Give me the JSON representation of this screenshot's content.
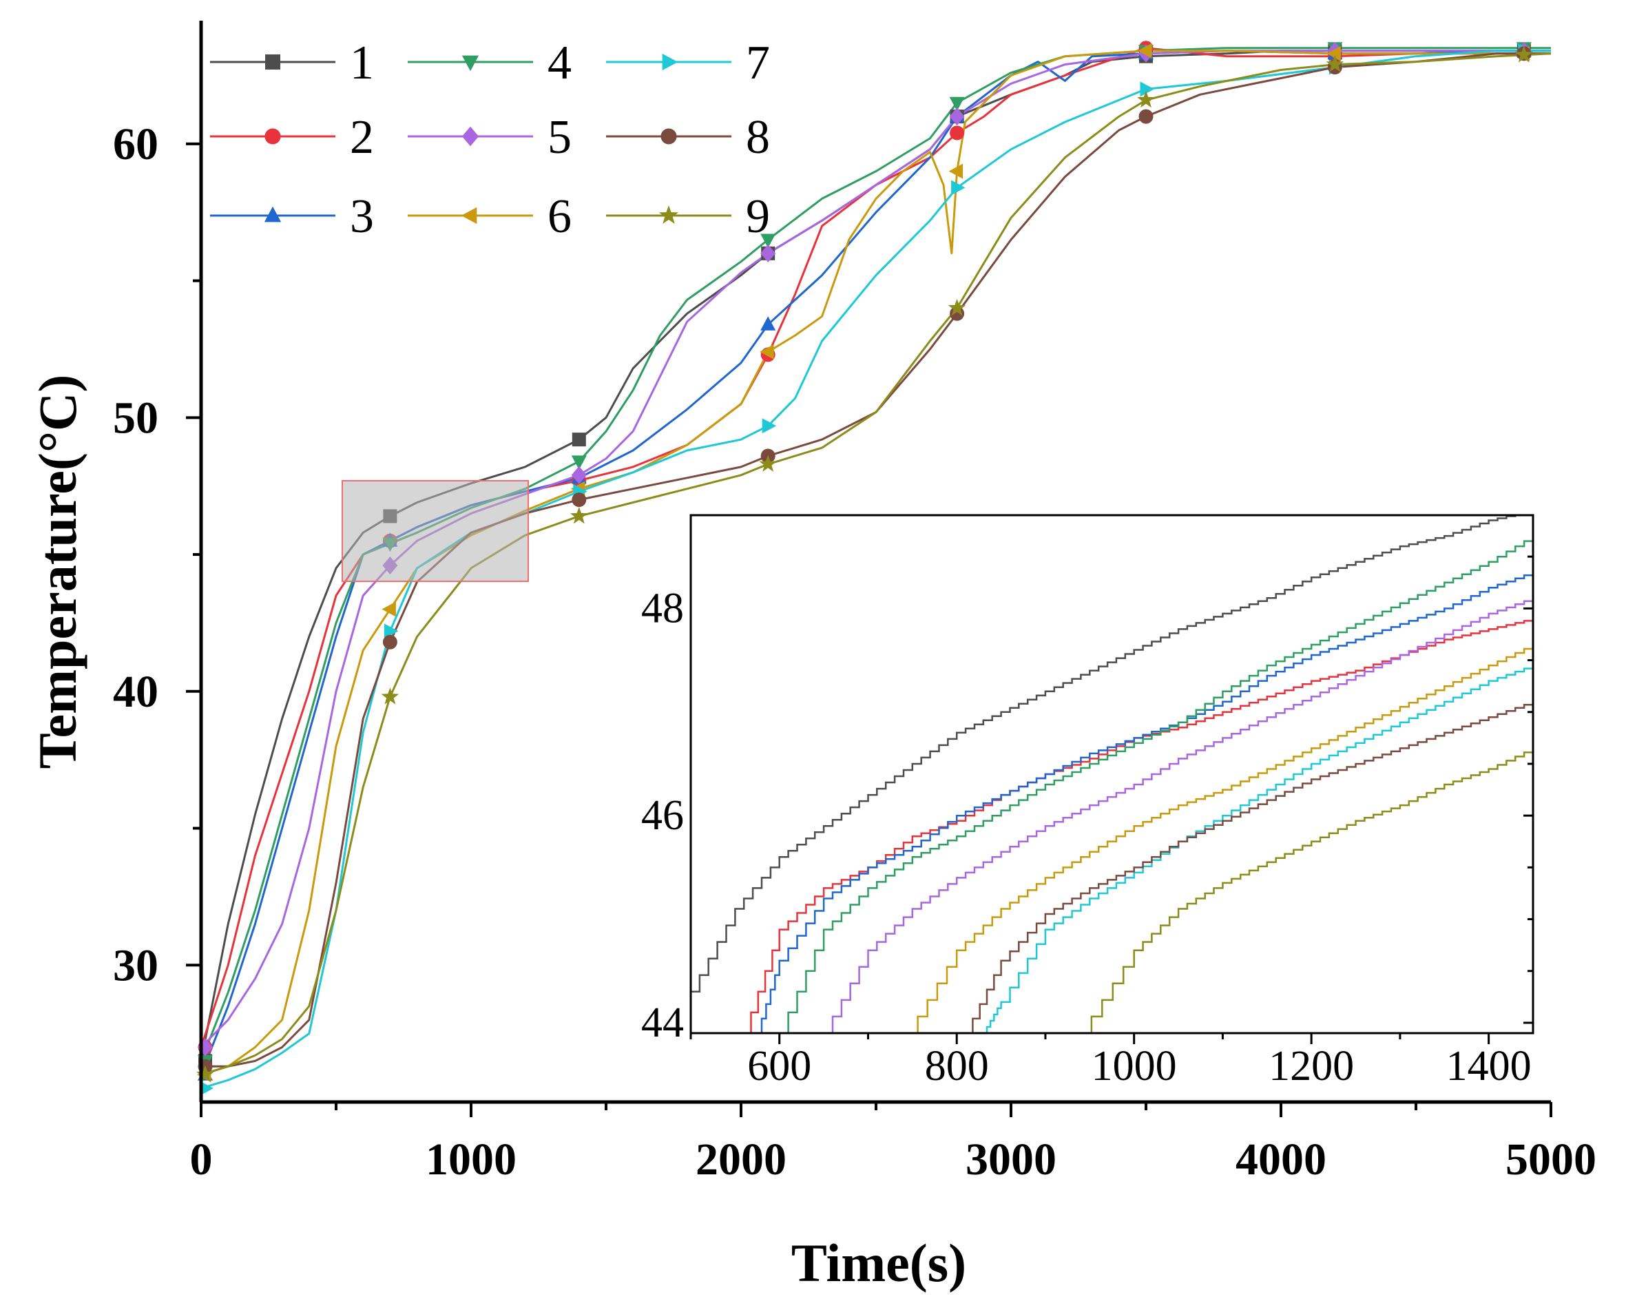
{
  "chart_data": {
    "type": "line",
    "xlabel": "Time(s)",
    "ylabel": "Temperature(°C)",
    "xlim": [
      0,
      5000
    ],
    "ylim": [
      25,
      64.5
    ],
    "xticks": [
      0,
      1000,
      2000,
      3000,
      4000,
      5000
    ],
    "xtick_labels": [
      "0",
      "1000",
      "2000",
      "3000",
      "4000",
      "5000"
    ],
    "yticks": [
      30,
      40,
      50,
      60
    ],
    "ytick_labels": [
      "30",
      "40",
      "50",
      "60"
    ],
    "legend_position": "top-left",
    "series": [
      {
        "name": "1",
        "color": "#4d4d4d",
        "marker": "square",
        "x": [
          0,
          100,
          200,
          300,
          400,
          500,
          600,
          700,
          800,
          1000,
          1200,
          1400,
          1500,
          1600,
          1700,
          1800,
          2000,
          2100,
          2300,
          2500,
          2700,
          2800,
          3000,
          3200,
          3300,
          3500,
          3800,
          4000,
          4200,
          4500,
          4800,
          5000
        ],
        "y": [
          26.5,
          31.5,
          35.5,
          39,
          42,
          44.5,
          45.8,
          46.4,
          46.9,
          47.6,
          48.2,
          49.2,
          50,
          51.8,
          52.8,
          53.8,
          55.2,
          56,
          57.2,
          58.5,
          59.8,
          61,
          61.8,
          62.5,
          63,
          63.2,
          63.3,
          63.4,
          63.4,
          63.4,
          63.4,
          63.4
        ]
      },
      {
        "name": "2",
        "color": "#e8323c",
        "marker": "circle",
        "x": [
          0,
          100,
          200,
          300,
          400,
          500,
          600,
          700,
          800,
          1000,
          1200,
          1400,
          1600,
          1800,
          2000,
          2100,
          2200,
          2300,
          2500,
          2700,
          2800,
          2900,
          3000,
          3200,
          3500,
          3800,
          4200,
          4500,
          4800,
          5000
        ],
        "y": [
          27,
          30,
          34,
          37,
          40,
          43.5,
          45,
          45.5,
          46,
          46.8,
          47.3,
          47.7,
          48.2,
          49,
          50.5,
          52.3,
          54.5,
          57,
          58.5,
          59.5,
          60.4,
          61,
          61.8,
          62.5,
          63.5,
          63.2,
          63.2,
          63.3,
          63.3,
          63.3
        ]
      },
      {
        "name": "3",
        "color": "#1f66d1",
        "marker": "triangle-up",
        "x": [
          0,
          100,
          200,
          300,
          400,
          500,
          600,
          700,
          800,
          1000,
          1200,
          1400,
          1600,
          1800,
          2000,
          2100,
          2300,
          2500,
          2700,
          2800,
          3000,
          3100,
          3200,
          3300,
          3500,
          3800,
          4200,
          4500,
          4800,
          5000
        ],
        "y": [
          26,
          28.5,
          31.5,
          35,
          38.5,
          42,
          45,
          45.5,
          46,
          46.8,
          47.3,
          47.8,
          48.8,
          50.3,
          52,
          53.4,
          55.2,
          57.5,
          59.5,
          61,
          62.5,
          63,
          62.3,
          63.2,
          63.3,
          63.4,
          63.3,
          63.3,
          63.4,
          63.4
        ]
      },
      {
        "name": "4",
        "color": "#2e9e63",
        "marker": "triangle-down",
        "x": [
          0,
          100,
          200,
          300,
          400,
          500,
          600,
          700,
          800,
          1000,
          1200,
          1400,
          1500,
          1600,
          1700,
          1800,
          2000,
          2100,
          2300,
          2500,
          2700,
          2800,
          3000,
          3200,
          3500,
          3800,
          4200,
          4500,
          4800,
          5000
        ],
        "y": [
          26.5,
          29,
          32,
          35.5,
          39,
          42.5,
          45,
          45.4,
          45.8,
          46.7,
          47.4,
          48.4,
          49.5,
          51,
          53,
          54.3,
          55.7,
          56.5,
          58,
          59,
          60.2,
          61.5,
          62.6,
          63.2,
          63.4,
          63.5,
          63.5,
          63.5,
          63.5,
          63.5
        ]
      },
      {
        "name": "5",
        "color": "#a866e0",
        "marker": "diamond",
        "x": [
          0,
          100,
          200,
          300,
          400,
          500,
          600,
          700,
          800,
          1000,
          1200,
          1400,
          1500,
          1600,
          1700,
          1800,
          2000,
          2100,
          2300,
          2500,
          2700,
          2800,
          3000,
          3200,
          3500,
          3800,
          4200,
          4500,
          4800,
          5000
        ],
        "y": [
          27,
          28,
          29.5,
          31.5,
          35,
          40,
          43.5,
          44.6,
          45.5,
          46.5,
          47.2,
          47.9,
          48.5,
          49.5,
          51.5,
          53.5,
          55.3,
          56,
          57.2,
          58.5,
          59.8,
          61,
          62.2,
          62.9,
          63.3,
          63.4,
          63.4,
          63.4,
          63.4,
          63.4
        ]
      },
      {
        "name": "6",
        "color": "#c99a0e",
        "marker": "triangle-left",
        "x": [
          0,
          100,
          200,
          300,
          400,
          500,
          600,
          700,
          800,
          1000,
          1200,
          1400,
          1600,
          1800,
          2000,
          2100,
          2200,
          2300,
          2400,
          2500,
          2600,
          2700,
          2750,
          2780,
          2800,
          2830,
          2880,
          3000,
          3200,
          3500,
          3800,
          4200,
          4500,
          4800,
          5000
        ],
        "y": [
          26,
          26.3,
          27,
          28,
          32,
          38,
          41.5,
          43,
          44.5,
          45.7,
          46.6,
          47.4,
          48,
          49,
          50.5,
          52.4,
          53,
          53.7,
          56.5,
          58,
          59,
          59.7,
          58.5,
          56,
          59,
          60.8,
          61.3,
          62.5,
          63.2,
          63.4,
          63.4,
          63.3,
          63.3,
          63.3,
          63.3
        ]
      },
      {
        "name": "7",
        "color": "#1ec8d4",
        "marker": "triangle-right",
        "x": [
          0,
          100,
          200,
          300,
          400,
          500,
          600,
          700,
          800,
          1000,
          1200,
          1400,
          1600,
          1800,
          2000,
          2100,
          2200,
          2300,
          2500,
          2700,
          2800,
          3000,
          3200,
          3500,
          3800,
          4200,
          4500,
          4800,
          5000
        ],
        "y": [
          25.5,
          25.8,
          26.2,
          26.8,
          27.5,
          32,
          38.5,
          42.2,
          44.5,
          45.8,
          46.5,
          47.3,
          48,
          48.8,
          49.2,
          49.7,
          50.7,
          52.8,
          55.2,
          57.2,
          58.4,
          59.8,
          60.8,
          62,
          62.3,
          62.8,
          63.2,
          63.4,
          63.4
        ]
      },
      {
        "name": "8",
        "color": "#7a4a3e",
        "marker": "circle",
        "x": [
          0,
          100,
          200,
          300,
          400,
          500,
          600,
          700,
          800,
          1000,
          1200,
          1400,
          1600,
          1800,
          2000,
          2100,
          2300,
          2500,
          2700,
          2800,
          3000,
          3200,
          3400,
          3500,
          3700,
          3900,
          4000,
          4200,
          4500,
          4800,
          5000
        ],
        "y": [
          26.3,
          26.3,
          26.5,
          27,
          28,
          33,
          39,
          41.8,
          44,
          45.8,
          46.5,
          47,
          47.4,
          47.8,
          48.2,
          48.6,
          49.2,
          50.2,
          52.5,
          53.8,
          56.5,
          58.8,
          60.5,
          61,
          61.8,
          62.2,
          62.4,
          62.8,
          63,
          63.3,
          63.3
        ]
      },
      {
        "name": "9",
        "color": "#8c8c1a",
        "marker": "star",
        "x": [
          0,
          100,
          200,
          300,
          400,
          500,
          600,
          700,
          800,
          1000,
          1200,
          1400,
          1600,
          1800,
          2000,
          2100,
          2300,
          2500,
          2700,
          2800,
          3000,
          3200,
          3400,
          3500,
          3700,
          3900,
          4000,
          4200,
          4500,
          4800,
          5000
        ],
        "y": [
          26,
          26.3,
          26.7,
          27.3,
          28.5,
          32,
          36.5,
          39.8,
          42,
          44.5,
          45.7,
          46.4,
          46.9,
          47.4,
          47.9,
          48.3,
          48.9,
          50.2,
          52.8,
          54,
          57.3,
          59.5,
          61,
          61.6,
          62.1,
          62.5,
          62.7,
          62.9,
          63,
          63.2,
          63.3
        ]
      }
    ],
    "inset": {
      "xlim": [
        500,
        1450
      ],
      "ylim": [
        43.9,
        48.9
      ],
      "xticks": [
        600,
        800,
        1000,
        1200,
        1400
      ],
      "xtick_labels": [
        "600",
        "800",
        "1000",
        "1200",
        "1400"
      ],
      "yticks": [
        44,
        46,
        48
      ],
      "ytick_labels": [
        "44",
        "46",
        "48"
      ],
      "series": [
        {
          "name": "1",
          "x": [
            500,
            550,
            600,
            650,
            700,
            750,
            800,
            850,
            900,
            950,
            1000,
            1050,
            1100,
            1150,
            1200,
            1250,
            1300,
            1350,
            1400,
            1450
          ],
          "y": [
            44.3,
            45.1,
            45.6,
            45.9,
            46.2,
            46.5,
            46.8,
            47.0,
            47.2,
            47.4,
            47.6,
            47.8,
            47.95,
            48.1,
            48.3,
            48.45,
            48.6,
            48.7,
            48.85,
            48.95
          ]
        },
        {
          "name": "2",
          "x": [
            560,
            600,
            650,
            700,
            750,
            800,
            850,
            900,
            950,
            1000,
            1050,
            1100,
            1150,
            1200,
            1250,
            1300,
            1350,
            1400,
            1450
          ],
          "y": [
            43.9,
            44.9,
            45.3,
            45.5,
            45.8,
            45.95,
            46.2,
            46.4,
            46.55,
            46.75,
            46.85,
            47.0,
            47.15,
            47.3,
            47.4,
            47.55,
            47.7,
            47.8,
            47.9
          ]
        },
        {
          "name": "3",
          "x": [
            575,
            600,
            650,
            700,
            750,
            800,
            850,
            900,
            950,
            1000,
            1050,
            1100,
            1150,
            1200,
            1250,
            1300,
            1350,
            1400,
            1450
          ],
          "y": [
            43.9,
            44.6,
            45.2,
            45.5,
            45.7,
            46.0,
            46.2,
            46.4,
            46.6,
            46.75,
            46.9,
            47.1,
            47.35,
            47.55,
            47.7,
            47.85,
            48.0,
            48.2,
            48.35
          ]
        },
        {
          "name": "4",
          "x": [
            600,
            650,
            700,
            750,
            800,
            850,
            900,
            950,
            1000,
            1050,
            1100,
            1150,
            1200,
            1250,
            1300,
            1350,
            1400,
            1450
          ],
          "y": [
            43.9,
            44.9,
            45.3,
            45.6,
            45.8,
            46.05,
            46.3,
            46.5,
            46.7,
            46.9,
            47.2,
            47.45,
            47.65,
            47.85,
            48.05,
            48.25,
            48.45,
            48.7
          ]
        },
        {
          "name": "5",
          "x": [
            650,
            700,
            750,
            800,
            850,
            900,
            950,
            1000,
            1050,
            1100,
            1150,
            1200,
            1250,
            1300,
            1350,
            1400,
            1450
          ],
          "y": [
            43.9,
            44.7,
            45.1,
            45.4,
            45.65,
            45.9,
            46.1,
            46.3,
            46.55,
            46.75,
            46.95,
            47.15,
            47.35,
            47.55,
            47.75,
            47.95,
            48.1
          ]
        },
        {
          "name": "6",
          "x": [
            745,
            800,
            850,
            900,
            950,
            1000,
            1050,
            1100,
            1150,
            1200,
            1250,
            1300,
            1350,
            1400,
            1450
          ],
          "y": [
            43.9,
            44.7,
            45.1,
            45.4,
            45.65,
            45.9,
            46.1,
            46.25,
            46.45,
            46.65,
            46.85,
            47.05,
            47.25,
            47.45,
            47.65
          ]
        },
        {
          "name": "7",
          "x": [
            830,
            850,
            900,
            950,
            1000,
            1050,
            1100,
            1150,
            1200,
            1250,
            1300,
            1350,
            1400,
            1450
          ],
          "y": [
            43.9,
            44.2,
            44.9,
            45.2,
            45.45,
            45.75,
            46.0,
            46.25,
            46.5,
            46.7,
            46.9,
            47.1,
            47.3,
            47.45
          ]
        },
        {
          "name": "8",
          "x": [
            810,
            850,
            900,
            950,
            1000,
            1050,
            1100,
            1150,
            1200,
            1250,
            1300,
            1350,
            1400,
            1450
          ],
          "y": [
            43.9,
            44.6,
            45.05,
            45.3,
            45.5,
            45.75,
            45.95,
            46.15,
            46.35,
            46.5,
            46.65,
            46.8,
            46.95,
            47.1
          ]
        },
        {
          "name": "9",
          "x": [
            940,
            1000,
            1050,
            1100,
            1150,
            1200,
            1250,
            1300,
            1350,
            1400,
            1450
          ],
          "y": [
            43.9,
            44.7,
            45.1,
            45.35,
            45.55,
            45.75,
            45.95,
            46.1,
            46.3,
            46.45,
            46.65
          ]
        }
      ]
    }
  }
}
